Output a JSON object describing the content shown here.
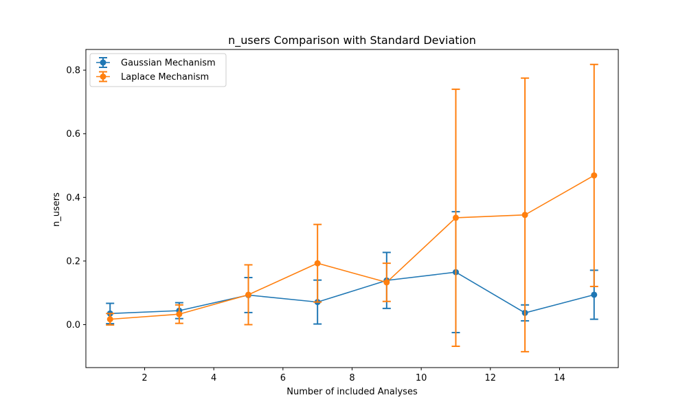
{
  "chart_data": {
    "type": "line",
    "title": "n_users Comparison with Standard Deviation",
    "xlabel": "Number of included Analyses",
    "ylabel": "n_users",
    "xlim": [
      0.3,
      15.7
    ],
    "ylim": [
      -0.135,
      0.865
    ],
    "xticks": [
      2,
      4,
      6,
      8,
      10,
      12,
      14
    ],
    "xtick_labels": [
      "2",
      "4",
      "6",
      "8",
      "10",
      "12",
      "14"
    ],
    "yticks": [
      0.0,
      0.2,
      0.4,
      0.6,
      0.8
    ],
    "ytick_labels": [
      "0.0",
      "0.2",
      "0.4",
      "0.6",
      "0.8"
    ],
    "grid": false,
    "legend_position": "top-left",
    "x": [
      1,
      3,
      5,
      7,
      9,
      11,
      13,
      15
    ],
    "series": [
      {
        "name": "Gaussian Mechanism",
        "color": "#1f77b4",
        "values": [
          0.035,
          0.044,
          0.093,
          0.071,
          0.139,
          0.165,
          0.037,
          0.094
        ],
        "error": [
          0.032,
          0.025,
          0.055,
          0.069,
          0.088,
          0.19,
          0.025,
          0.077
        ]
      },
      {
        "name": "Laplace Mechanism",
        "color": "#ff7f0e",
        "values": [
          0.017,
          0.033,
          0.094,
          0.193,
          0.133,
          0.336,
          0.345,
          0.469
        ],
        "error": [
          0.018,
          0.029,
          0.094,
          0.122,
          0.06,
          0.404,
          0.43,
          0.349
        ]
      }
    ]
  }
}
